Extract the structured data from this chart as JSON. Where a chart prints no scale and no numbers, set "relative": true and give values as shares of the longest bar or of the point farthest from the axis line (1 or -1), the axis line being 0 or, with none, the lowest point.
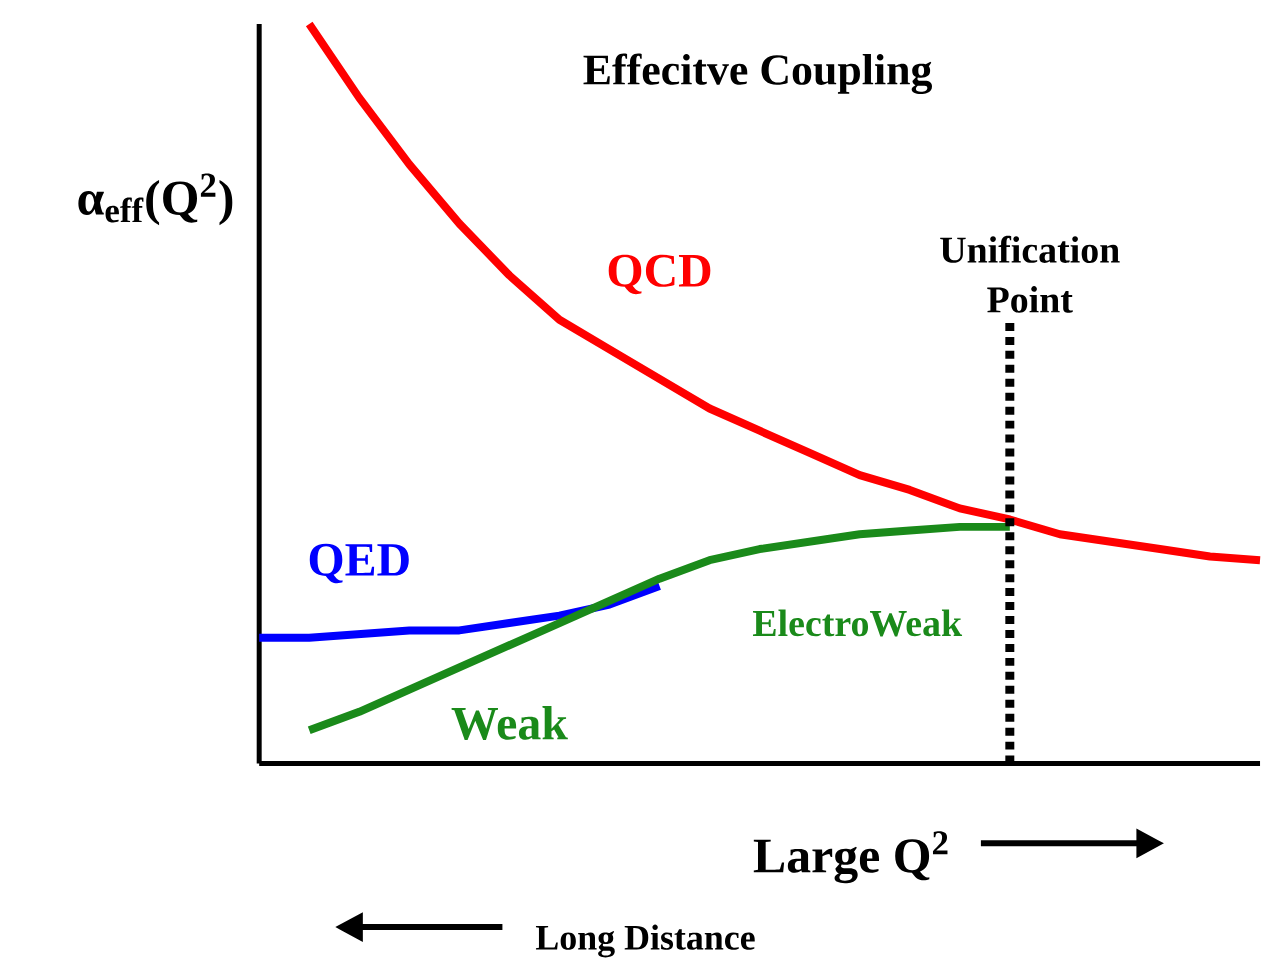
{
  "chart_data": {
    "type": "line",
    "title": "Effecitve Coupling",
    "xlabel": "Large Q$^{2}$",
    "ylabel": "α$_{eff}$(Q$^{2}$)",
    "relative": true,
    "categories": [
      null,
      null,
      null,
      null,
      null,
      null,
      null,
      null,
      null,
      null,
      null,
      null,
      null,
      null,
      null,
      null,
      null,
      null,
      null,
      null,
      null
    ],
    "series": [
      {
        "name": "QCD",
        "color": "#ff0000",
        "values": [
          null,
          1.0,
          0.9,
          0.81,
          0.73,
          0.66,
          0.6,
          0.56,
          0.52,
          0.48,
          0.45,
          0.42,
          0.39,
          0.37,
          0.345,
          0.33,
          0.31,
          0.3,
          0.29,
          0.28,
          0.275
        ]
      },
      {
        "name": "QED",
        "color": "#0000ff",
        "values": [
          0.17,
          0.17,
          0.175,
          0.18,
          0.18,
          0.19,
          0.2,
          0.215,
          0.24,
          null,
          null,
          null,
          null,
          null,
          null,
          null,
          null,
          null,
          null,
          null,
          null
        ]
      },
      {
        "name": "Weak",
        "color": "#1a8a1a",
        "values": [
          null,
          0.045,
          0.07,
          0.1,
          0.13,
          0.16,
          0.19,
          0.22,
          0.25,
          0.275,
          0.29,
          0.3,
          0.31,
          0.315,
          0.32,
          0.32,
          null,
          null,
          null,
          null,
          null
        ]
      }
    ],
    "annotations": [
      "Unification Point",
      "ElectroWeak",
      "Long Distance"
    ]
  }
}
